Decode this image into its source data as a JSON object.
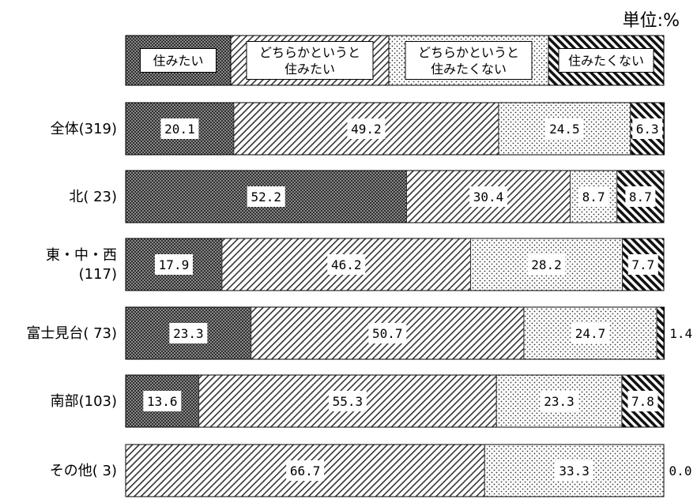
{
  "chart_data": {
    "type": "bar",
    "orientation": "horizontal",
    "stacked": true,
    "unit_label": "単位:%",
    "legend": [
      "住みたい",
      "どちらかというと\n住みたい",
      "どちらかというと\n住みたくない",
      "住みたくない"
    ],
    "legend_placement": "top",
    "categories": [
      "全体(319)",
      "北( 23)",
      "東・中・西\n(117)",
      "富士見台( 73)",
      "南部(103)",
      "その他( 3)"
    ],
    "series": [
      {
        "name": "住みたい",
        "values": [
          20.1,
          52.2,
          17.9,
          23.3,
          13.6,
          0.0
        ]
      },
      {
        "name": "どちらかというと住みたい",
        "values": [
          49.2,
          30.4,
          46.2,
          50.7,
          55.3,
          66.7
        ]
      },
      {
        "name": "どちらかというと住みたくない",
        "values": [
          24.5,
          8.7,
          28.2,
          24.7,
          23.3,
          33.3
        ]
      },
      {
        "name": "住みたくない",
        "values": [
          6.3,
          8.7,
          7.7,
          1.4,
          7.8,
          0.0
        ]
      }
    ],
    "value_labels": [
      [
        "20.1",
        "49.2",
        "24.5",
        "6.3"
      ],
      [
        "52.2",
        "30.4",
        "8.7",
        "8.7"
      ],
      [
        "17.9",
        "46.2",
        "28.2",
        "7.7"
      ],
      [
        "23.3",
        "50.7",
        "24.7",
        "1.4"
      ],
      [
        "13.6",
        "55.3",
        "23.3",
        "7.8"
      ],
      [
        "0.0",
        "66.7",
        "33.3",
        "0.0"
      ]
    ],
    "xlim": [
      0,
      100
    ],
    "grid": false
  }
}
